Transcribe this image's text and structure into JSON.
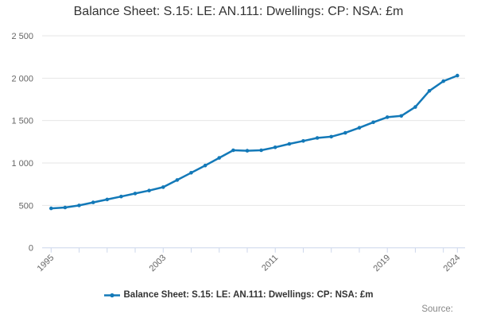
{
  "title": "Balance Sheet: S.15: LE: AN.111: Dwellings: CP: NSA: £m",
  "legend": {
    "label": "Balance Sheet: S.15: LE: AN.111: Dwellings: CP: NSA: £m"
  },
  "source_label": "Source:",
  "colors": {
    "series": "#1379b8",
    "grid": "#e6e6e6",
    "axis_line": "#ccd6eb",
    "tick": "#ccd6eb",
    "axis_label": "#666666",
    "title": "#333333",
    "legend_text": "#333333",
    "source_text": "#888888",
    "background": "#ffffff"
  },
  "chart_data": {
    "type": "line",
    "title": "Balance Sheet: S.15: LE: AN.111: Dwellings: CP: NSA: £m",
    "xlabel": "",
    "ylabel": "",
    "x": [
      1995,
      1996,
      1997,
      1998,
      1999,
      2000,
      2001,
      2002,
      2003,
      2004,
      2005,
      2006,
      2007,
      2008,
      2009,
      2010,
      2011,
      2012,
      2013,
      2014,
      2015,
      2016,
      2017,
      2018,
      2019,
      2020,
      2021,
      2022,
      2023,
      2024
    ],
    "series": [
      {
        "name": "Balance Sheet: S.15: LE: AN.111: Dwellings: CP: NSA: £m",
        "values": [
          465,
          475,
          500,
          535,
          570,
          605,
          640,
          675,
          715,
          800,
          885,
          970,
          1060,
          1150,
          1145,
          1150,
          1185,
          1225,
          1260,
          1295,
          1310,
          1355,
          1415,
          1480,
          1540,
          1555,
          1660,
          1850,
          1965,
          2030
        ]
      }
    ],
    "ylim": [
      0,
      2500
    ],
    "y_ticks": [
      0,
      500,
      1000,
      1500,
      2000,
      2500
    ],
    "y_tick_labels": [
      "0",
      "500",
      "1 000",
      "1 500",
      "2 000",
      "2 500"
    ],
    "x_labeled_ticks": [
      1995,
      2003,
      2011,
      2019,
      2024
    ],
    "x_tick_labels": [
      "1995",
      "2003",
      "2011",
      "2019",
      "2024"
    ],
    "x_minor_tick_step_years": 2,
    "grid": "horizontal",
    "marker": "dot",
    "legend_position": "bottom-center"
  }
}
